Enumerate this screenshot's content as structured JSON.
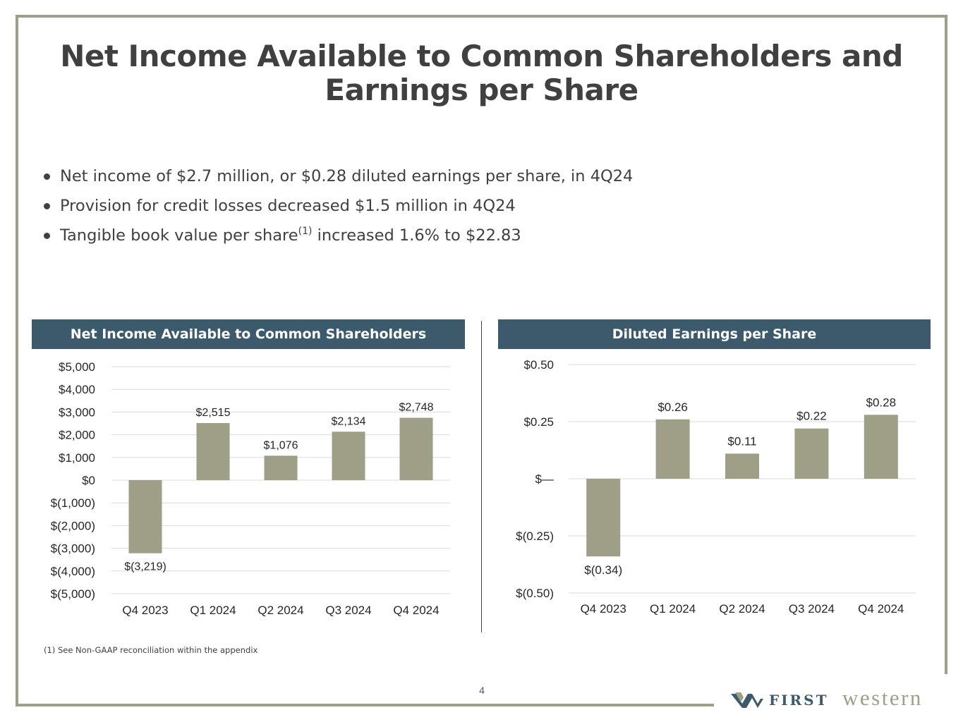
{
  "slide": {
    "title_line1": "Net Income Available to Common Shareholders and",
    "title_line2": "Earnings per Share",
    "bullets": [
      {
        "text": "Net income of $2.7 million, or $0.28 diluted earnings per share, in 4Q24"
      },
      {
        "text": "Provision for credit losses decreased $1.5 million in 4Q24"
      },
      {
        "text_pre": "Tangible book value per share",
        "sup": "(1)",
        "text_post": " increased 1.6% to $22.83"
      }
    ],
    "footnote": "(1)  See Non-GAAP reconciliation within the appendix",
    "page_number": "4"
  },
  "logo": {
    "first": "FIRST",
    "western": "western",
    "icon": "w-chevron-logo-icon"
  },
  "colors": {
    "bar": "#9e9f86",
    "header_bg": "#3d5a6c",
    "frame": "#9e9f86",
    "grid": "#d9d9d9",
    "text": "#404040"
  },
  "chart_data": [
    {
      "type": "bar",
      "title": "Net Income Available to Common Shareholders",
      "categories": [
        "Q4 2023",
        "Q1 2024",
        "Q2 2024",
        "Q3 2024",
        "Q4 2024"
      ],
      "values": [
        -3219,
        2515,
        1076,
        2134,
        2748
      ],
      "data_labels": [
        "$(3,219)",
        "$2,515",
        "$1,076",
        "$2,134",
        "$2,748"
      ],
      "yticks": [
        5000,
        4000,
        3000,
        2000,
        1000,
        0,
        -1000,
        -2000,
        -3000,
        -4000,
        -5000
      ],
      "ytick_labels": [
        "$5,000",
        "$4,000",
        "$3,000",
        "$2,000",
        "$1,000",
        "$0",
        "$(1,000)",
        "$(2,000)",
        "$(3,000)",
        "$(4,000)",
        "$(5,000)"
      ],
      "ylim": [
        -5000,
        5000
      ],
      "xlabel": "",
      "ylabel": "",
      "grid": true
    },
    {
      "type": "bar",
      "title": "Diluted Earnings per Share",
      "categories": [
        "Q4 2023",
        "Q1 2024",
        "Q2 2024",
        "Q3 2024",
        "Q4 2024"
      ],
      "values": [
        -0.34,
        0.26,
        0.11,
        0.22,
        0.28
      ],
      "data_labels": [
        "$(0.34)",
        "$0.26",
        "$0.11",
        "$0.22",
        "$0.28"
      ],
      "yticks": [
        0.5,
        0.25,
        0,
        -0.25,
        -0.5
      ],
      "ytick_labels": [
        "$0.50",
        "$0.25",
        "$—",
        "$(0.25)",
        "$(0.50)"
      ],
      "ylim": [
        -0.5,
        0.5
      ],
      "xlabel": "",
      "ylabel": "",
      "grid": true
    }
  ]
}
